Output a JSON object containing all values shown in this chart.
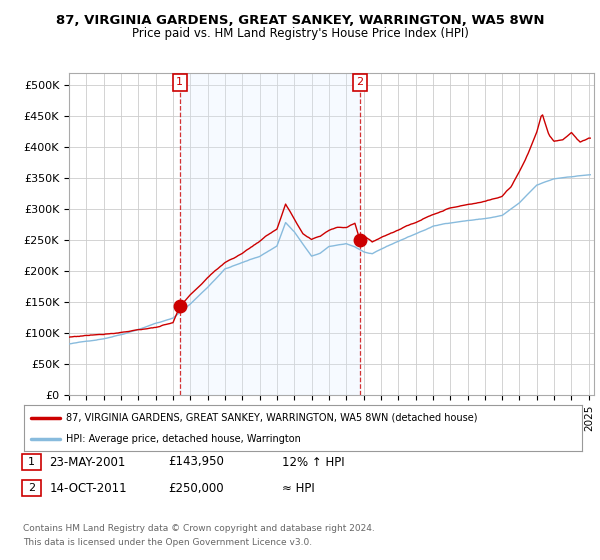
{
  "title": "87, VIRGINIA GARDENS, GREAT SANKEY, WARRINGTON, WA5 8WN",
  "subtitle": "Price paid vs. HM Land Registry's House Price Index (HPI)",
  "ylabel_ticks": [
    "£0",
    "£50K",
    "£100K",
    "£150K",
    "£200K",
    "£250K",
    "£300K",
    "£350K",
    "£400K",
    "£450K",
    "£500K"
  ],
  "ytick_values": [
    0,
    50000,
    100000,
    150000,
    200000,
    250000,
    300000,
    350000,
    400000,
    450000,
    500000
  ],
  "ylim": [
    0,
    520000
  ],
  "xlim_start": 1995.0,
  "xlim_end": 2025.3,
  "background_color": "#ffffff",
  "plot_bg_color": "#ffffff",
  "grid_color": "#cccccc",
  "shade_color": "#ddeeff",
  "sale1_date": "23-MAY-2001",
  "sale1_price": 143950,
  "sale1_label": "1",
  "sale1_x": 2001.39,
  "sale2_date": "14-OCT-2011",
  "sale2_price": 250000,
  "sale2_label": "2",
  "sale2_x": 2011.79,
  "legend_line1": "87, VIRGINIA GARDENS, GREAT SANKEY, WARRINGTON, WA5 8WN (detached house)",
  "legend_line2": "HPI: Average price, detached house, Warrington",
  "footer1": "Contains HM Land Registry data © Crown copyright and database right 2024.",
  "footer2": "This data is licensed under the Open Government Licence v3.0.",
  "table_row1": [
    "1",
    "23-MAY-2001",
    "£143,950",
    "12% ↑ HPI"
  ],
  "table_row2": [
    "2",
    "14-OCT-2011",
    "£250,000",
    "≈ HPI"
  ],
  "line_color_red": "#cc0000",
  "line_color_blue": "#88bbdd",
  "marker_color_red": "#cc0000",
  "vline_color": "#cc0000",
  "label_box_color": "#cc0000"
}
